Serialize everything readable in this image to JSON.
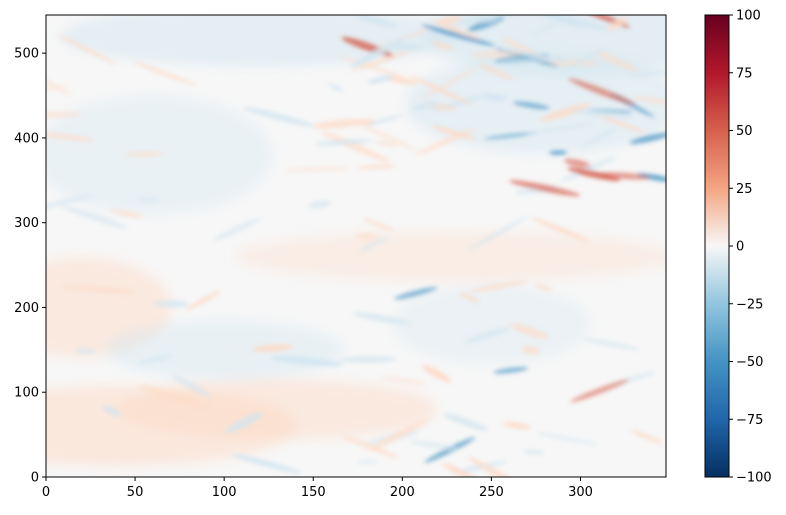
{
  "chart_data": {
    "type": "heatmap",
    "title": "",
    "xlabel": "",
    "ylabel": "",
    "xlim": [
      0,
      348
    ],
    "ylim": [
      0,
      545
    ],
    "x_ticks": [
      0,
      50,
      100,
      150,
      200,
      250,
      300
    ],
    "y_ticks": [
      0,
      100,
      200,
      300,
      400,
      500
    ],
    "x_tick_labels": [
      "0",
      "50",
      "100",
      "150",
      "200",
      "250",
      "300"
    ],
    "y_tick_labels": [
      "0",
      "100",
      "200",
      "300",
      "400",
      "500"
    ],
    "colormap": "RdBu_r",
    "colorbar": {
      "range": [
        -100,
        100
      ],
      "ticks": [
        100,
        75,
        50,
        25,
        0,
        -25,
        -50,
        -75,
        -100
      ],
      "tick_labels": [
        "100",
        "75",
        "50",
        "25",
        "0",
        "−25",
        "−50",
        "−75",
        "−100"
      ]
    },
    "grid": false,
    "colors": {
      "neg_extreme": "#053061",
      "neg_mid": "#4393c3",
      "neg_light": "#d1e5f0",
      "zero": "#f7f7f7",
      "pos_light": "#fddbc7",
      "pos_mid": "#d6604d",
      "pos_extreme": "#67001f"
    }
  }
}
